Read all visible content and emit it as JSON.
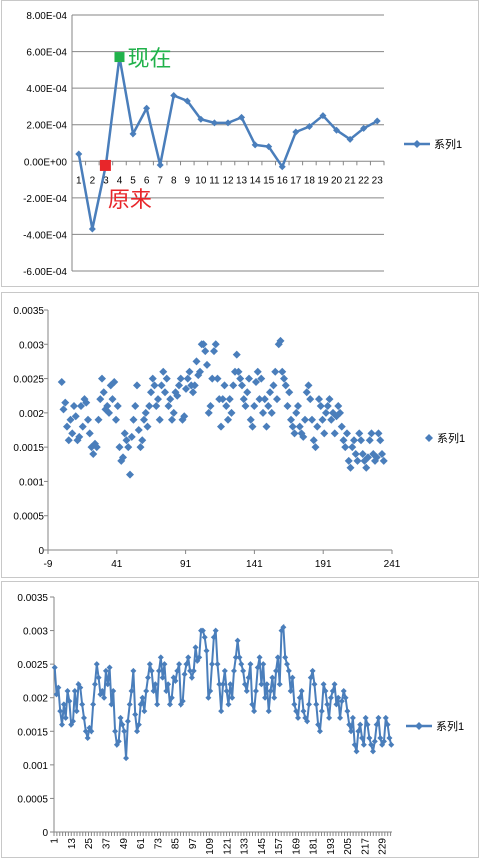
{
  "charts": [
    {
      "type": "line",
      "legend": "系列1",
      "ylim": [
        -0.0006,
        0.0008
      ],
      "yticks": [
        0.0008,
        0.0006,
        0.0004,
        0.0002,
        0,
        -0.0002,
        -0.0004,
        -0.0006
      ],
      "ytick_labels": [
        "8.00E-04",
        "6.00E-04",
        "4.00E-04",
        "2.00E-04",
        "0.00E+00",
        "-2.00E-04",
        "-4.00E-04",
        "-6.00E-04"
      ],
      "categories": [
        "1",
        "2",
        "3",
        "4",
        "5",
        "6",
        "7",
        "8",
        "9",
        "10",
        "11",
        "12",
        "13",
        "14",
        "15",
        "16",
        "17",
        "18",
        "19",
        "20",
        "21",
        "22",
        "23"
      ],
      "values": [
        4e-05,
        -0.00037,
        -2e-05,
        0.00057,
        0.00015,
        0.00029,
        -2e-05,
        0.00036,
        0.00033,
        0.00023,
        0.00021,
        0.00021,
        0.00024,
        9e-05,
        8e-05,
        -3e-05,
        0.00016,
        0.00019,
        0.00025,
        0.00017,
        0.00012,
        0.00018,
        0.00022
      ],
      "color": "#4a7ebb",
      "annotations": [
        {
          "text": "现在",
          "index": 4,
          "color": "#21b24b"
        },
        {
          "text": "原来",
          "index": 3,
          "color": "#e8262a"
        }
      ]
    },
    {
      "type": "scatter",
      "legend": "系列1",
      "ylim": [
        0,
        0.0035
      ],
      "xlim": [
        -9,
        241
      ],
      "yticks": [
        0.0035,
        0.003,
        0.0025,
        0.002,
        0.0015,
        0.001,
        0.0005,
        0
      ],
      "ytick_labels": [
        "0.0035",
        "0.003",
        "0.0025",
        "0.002",
        "0.0015",
        "0.001",
        "0.0005",
        "0"
      ],
      "xticks": [
        -9,
        41,
        91,
        141,
        191,
        241
      ],
      "xtick_labels": [
        "-9",
        "41",
        "91",
        "141",
        "191",
        "241"
      ],
      "color": "#4a7ebb"
    },
    {
      "type": "line",
      "legend": "系列1",
      "ylim": [
        0,
        0.0035
      ],
      "yticks": [
        0.0035,
        0.003,
        0.0025,
        0.002,
        0.0015,
        0.001,
        0.0005,
        0
      ],
      "ytick_labels": [
        "0.0035",
        "0.003",
        "0.0025",
        "0.002",
        "0.0015",
        "0.001",
        "0.0005",
        "0"
      ],
      "xtick_labels": [
        "1",
        "13",
        "25",
        "37",
        "49",
        "61",
        "73",
        "85",
        "97",
        "109",
        "121",
        "133",
        "145",
        "157",
        "169",
        "181",
        "193",
        "205",
        "217",
        "229"
      ],
      "color": "#4a7ebb"
    }
  ],
  "chart_data": [
    {
      "type": "line",
      "categories": [
        "1",
        "2",
        "3",
        "4",
        "5",
        "6",
        "7",
        "8",
        "9",
        "10",
        "11",
        "12",
        "13",
        "14",
        "15",
        "16",
        "17",
        "18",
        "19",
        "20",
        "21",
        "22",
        "23"
      ],
      "series": [
        {
          "name": "系列1",
          "values": [
            4e-05,
            -0.00037,
            -2e-05,
            0.00057,
            0.00015,
            0.00029,
            -2e-05,
            0.00036,
            0.00033,
            0.00023,
            0.00021,
            0.00021,
            0.00024,
            9e-05,
            8e-05,
            -3e-05,
            0.00016,
            0.00019,
            0.00025,
            0.00017,
            0.00012,
            0.00018,
            0.00022
          ]
        }
      ],
      "ylim": [
        -0.0006,
        0.0008
      ],
      "annotations": [
        "现在",
        "原来"
      ]
    },
    {
      "type": "scatter",
      "series": [
        {
          "name": "系列1"
        }
      ],
      "xlim": [
        -9,
        241
      ],
      "ylim": [
        0,
        0.0035
      ],
      "y_values": [
        0.00245,
        0.00205,
        0.00215,
        0.0018,
        0.0016,
        0.0019,
        0.0017,
        0.0021,
        0.00195,
        0.0016,
        0.00165,
        0.0021,
        0.0018,
        0.0022,
        0.00215,
        0.0019,
        0.0017,
        0.0015,
        0.0014,
        0.00155,
        0.0015,
        0.0019,
        0.0022,
        0.0025,
        0.0023,
        0.00205,
        0.0021,
        0.002,
        0.0024,
        0.0022,
        0.00245,
        0.0019,
        0.0021,
        0.0015,
        0.0013,
        0.00135,
        0.0017,
        0.0016,
        0.0015,
        0.0011,
        0.00165,
        0.0019,
        0.0021,
        0.0024,
        0.00175,
        0.0015,
        0.0016,
        0.0019,
        0.002,
        0.0018,
        0.0021,
        0.0023,
        0.0025,
        0.0024,
        0.0021,
        0.0022,
        0.0019,
        0.0024,
        0.0026,
        0.0023,
        0.0025,
        0.0021,
        0.0022,
        0.0019,
        0.002,
        0.0023,
        0.00225,
        0.0024,
        0.0025,
        0.0019,
        0.00195,
        0.00235,
        0.0025,
        0.0026,
        0.0024,
        0.0023,
        0.0024,
        0.00275,
        0.00255,
        0.0026,
        0.003,
        0.003,
        0.0029,
        0.0027,
        0.002,
        0.0021,
        0.0025,
        0.0029,
        0.003,
        0.0025,
        0.0022,
        0.0018,
        0.0022,
        0.0024,
        0.0021,
        0.0019,
        0.0022,
        0.002,
        0.0024,
        0.0026,
        0.00285,
        0.0026,
        0.0025,
        0.0024,
        0.0022,
        0.0021,
        0.0023,
        0.0025,
        0.0019,
        0.0018,
        0.0021,
        0.00245,
        0.0026,
        0.0022,
        0.0025,
        0.002,
        0.0022,
        0.0018,
        0.0021,
        0.0023,
        0.002,
        0.0024,
        0.0026,
        0.0022,
        0.003,
        0.00305,
        0.0026,
        0.0025,
        0.0024,
        0.0021,
        0.0023,
        0.0019,
        0.0018,
        0.0017,
        0.002,
        0.0021,
        0.0018,
        0.0017,
        0.00165,
        0.0019,
        0.0023,
        0.0024,
        0.0022,
        0.0019,
        0.0016,
        0.0015,
        0.0018,
        0.0022,
        0.0021,
        0.0019,
        0.0017,
        0.002,
        0.0021,
        0.0022,
        0.0019,
        0.002,
        0.0017,
        0.00195,
        0.0021,
        0.002,
        0.0018,
        0.0016,
        0.0015,
        0.0017,
        0.0013,
        0.0012,
        0.0015,
        0.0016,
        0.0014,
        0.0013,
        0.0017,
        0.0016,
        0.0014,
        0.0013,
        0.0012,
        0.00135,
        0.0016,
        0.0017,
        0.0014,
        0.0013,
        0.00135,
        0.0017,
        0.0016,
        0.0014,
        0.0013
      ]
    },
    {
      "type": "line",
      "series": [
        {
          "name": "系列1"
        }
      ],
      "ylim": [
        0,
        0.0035
      ],
      "x_tick_labels": [
        "1",
        "13",
        "25",
        "37",
        "49",
        "61",
        "73",
        "85",
        "97",
        "109",
        "121",
        "133",
        "145",
        "157",
        "169",
        "181",
        "193",
        "205",
        "217",
        "229"
      ]
    }
  ]
}
